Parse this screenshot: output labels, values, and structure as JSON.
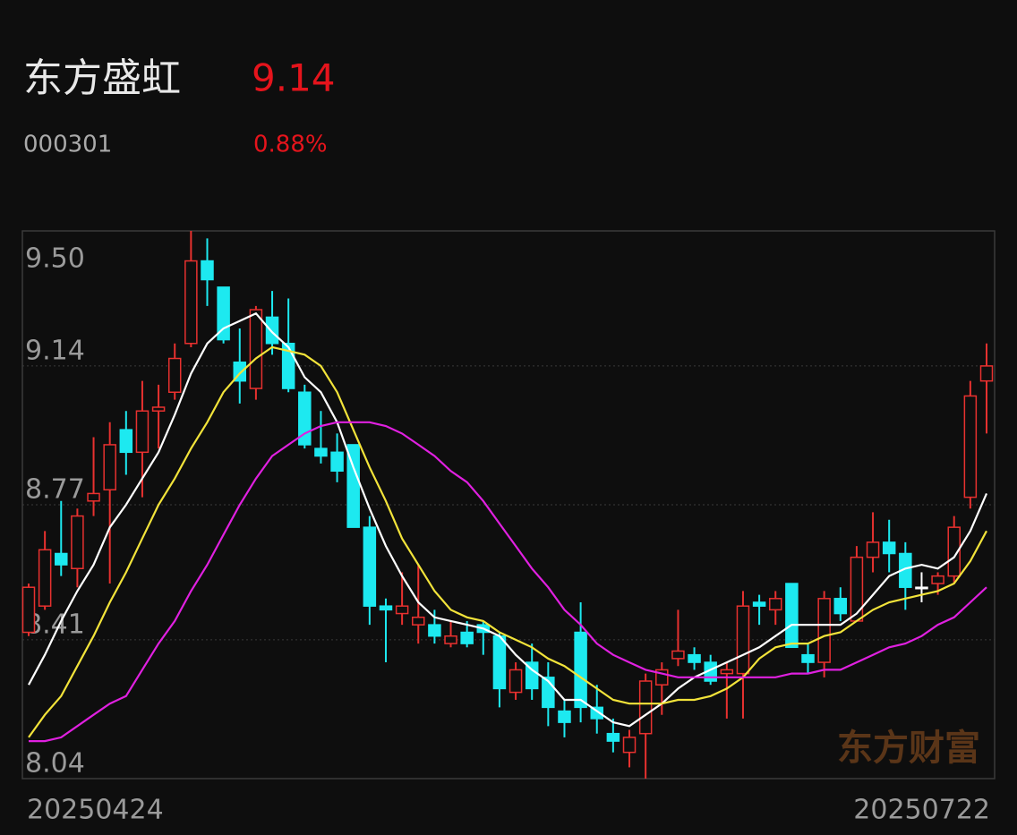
{
  "header": {
    "name": "东方盛虹",
    "price": "9.14",
    "code": "000301",
    "change": "0.88%"
  },
  "watermark": "东方财富",
  "chart_data": {
    "type": "candlestick",
    "categories": [
      "20250424",
      null,
      null,
      null,
      null,
      null,
      null,
      null,
      null,
      null,
      null,
      null,
      null,
      null,
      null,
      null,
      null,
      null,
      null,
      null,
      null,
      null,
      null,
      null,
      null,
      null,
      null,
      null,
      null,
      null,
      null,
      null,
      null,
      null,
      null,
      null,
      null,
      null,
      null,
      null,
      null,
      null,
      null,
      null,
      null,
      null,
      null,
      null,
      null,
      null,
      null,
      null,
      null,
      null,
      null,
      null,
      null,
      null,
      null,
      "20250722"
    ],
    "open": [
      8.43,
      8.5,
      8.64,
      8.6,
      8.78,
      8.81,
      8.97,
      8.91,
      9.02,
      9.07,
      9.2,
      9.42,
      9.35,
      9.15,
      9.08,
      9.27,
      9.2,
      9.07,
      8.92,
      8.91,
      8.93,
      8.71,
      8.5,
      8.48,
      8.45,
      8.45,
      8.4,
      8.43,
      8.45,
      8.42,
      8.27,
      8.35,
      8.31,
      8.22,
      8.43,
      8.23,
      8.16,
      8.11,
      8.16,
      8.29,
      8.36,
      8.37,
      8.35,
      8.32,
      8.32,
      8.51,
      8.49,
      8.56,
      8.37,
      8.35,
      8.52,
      8.46,
      8.63,
      8.67,
      8.64,
      8.55,
      8.56,
      8.58,
      8.79,
      9.1
    ],
    "high": [
      8.56,
      8.7,
      8.78,
      8.76,
      8.95,
      8.99,
      9.02,
      9.1,
      9.09,
      9.2,
      9.5,
      9.48,
      9.35,
      9.24,
      9.3,
      9.34,
      9.32,
      9.09,
      9.02,
      8.96,
      8.93,
      8.74,
      8.52,
      8.59,
      8.61,
      8.49,
      8.46,
      8.46,
      8.46,
      8.43,
      8.35,
      8.4,
      8.35,
      8.25,
      8.51,
      8.29,
      8.2,
      8.17,
      8.32,
      8.35,
      8.49,
      8.39,
      8.37,
      8.35,
      8.54,
      8.53,
      8.54,
      8.56,
      8.4,
      8.54,
      8.55,
      8.66,
      8.75,
      8.73,
      8.67,
      8.59,
      8.59,
      8.74,
      9.1,
      9.2
    ],
    "low": [
      8.42,
      8.49,
      8.58,
      8.55,
      8.74,
      8.56,
      8.85,
      8.79,
      8.92,
      9.05,
      9.19,
      9.3,
      9.2,
      9.04,
      9.05,
      9.17,
      9.07,
      8.92,
      8.88,
      8.83,
      8.71,
      8.45,
      8.35,
      8.45,
      8.4,
      8.4,
      8.39,
      8.39,
      8.37,
      8.23,
      8.25,
      8.25,
      8.18,
      8.15,
      8.19,
      8.16,
      8.11,
      8.07,
      8.04,
      8.21,
      8.34,
      8.33,
      8.29,
      8.2,
      8.2,
      8.45,
      8.45,
      8.39,
      8.32,
      8.31,
      8.46,
      8.46,
      8.59,
      8.59,
      8.49,
      8.51,
      8.53,
      8.56,
      8.76,
      8.96
    ],
    "close": [
      8.55,
      8.65,
      8.61,
      8.74,
      8.8,
      8.93,
      8.91,
      9.02,
      9.03,
      9.16,
      9.42,
      9.37,
      9.21,
      9.1,
      9.29,
      9.2,
      9.08,
      8.93,
      8.9,
      8.86,
      8.71,
      8.5,
      8.49,
      8.5,
      8.47,
      8.42,
      8.42,
      8.4,
      8.43,
      8.28,
      8.33,
      8.28,
      8.23,
      8.19,
      8.23,
      8.2,
      8.14,
      8.15,
      8.3,
      8.33,
      8.38,
      8.35,
      8.3,
      8.33,
      8.5,
      8.5,
      8.52,
      8.39,
      8.35,
      8.52,
      8.48,
      8.63,
      8.67,
      8.64,
      8.55,
      8.55,
      8.58,
      8.71,
      9.06,
      9.14
    ],
    "colors": {
      "up": "#e8312f",
      "down": "#1de9f0",
      "flat": "#ffffff"
    },
    "series": [
      {
        "color": "#ffffff",
        "values": [
          8.29,
          8.37,
          8.46,
          8.54,
          8.61,
          8.71,
          8.77,
          8.84,
          8.91,
          9.01,
          9.12,
          9.2,
          9.24,
          9.26,
          9.28,
          9.23,
          9.19,
          9.11,
          9.07,
          8.99,
          8.87,
          8.76,
          8.66,
          8.58,
          8.51,
          8.47,
          8.46,
          8.45,
          8.44,
          8.42,
          8.37,
          8.33,
          8.3,
          8.25,
          8.25,
          8.22,
          8.19,
          8.18,
          8.21,
          8.24,
          8.28,
          8.31,
          8.33,
          8.35,
          8.37,
          8.39,
          8.42,
          8.45,
          8.45,
          8.45,
          8.45,
          8.48,
          8.53,
          8.58,
          8.6,
          8.61,
          8.6,
          8.63,
          8.7,
          8.8
        ]
      },
      {
        "color": "#f2e33a",
        "values": [
          8.15,
          8.21,
          8.26,
          8.34,
          8.42,
          8.51,
          8.59,
          8.68,
          8.77,
          8.84,
          8.92,
          8.99,
          9.07,
          9.12,
          9.16,
          9.19,
          9.18,
          9.17,
          9.14,
          9.07,
          8.97,
          8.87,
          8.78,
          8.68,
          8.61,
          8.54,
          8.49,
          8.47,
          8.46,
          8.43,
          8.41,
          8.39,
          8.36,
          8.34,
          8.31,
          8.28,
          8.25,
          8.24,
          8.24,
          8.24,
          8.25,
          8.25,
          8.26,
          8.28,
          8.31,
          8.36,
          8.39,
          8.4,
          8.4,
          8.42,
          8.43,
          8.46,
          8.49,
          8.51,
          8.52,
          8.53,
          8.54,
          8.56,
          8.62,
          8.7
        ]
      },
      {
        "color": "#e020e0",
        "values": [
          8.14,
          8.14,
          8.15,
          8.18,
          8.21,
          8.24,
          8.26,
          8.33,
          8.4,
          8.46,
          8.54,
          8.61,
          8.69,
          8.77,
          8.84,
          8.9,
          8.93,
          8.96,
          8.98,
          8.99,
          8.99,
          8.99,
          8.98,
          8.96,
          8.93,
          8.9,
          8.86,
          8.83,
          8.78,
          8.72,
          8.66,
          8.6,
          8.55,
          8.49,
          8.45,
          8.4,
          8.37,
          8.35,
          8.33,
          8.32,
          8.31,
          8.31,
          8.31,
          8.31,
          8.31,
          8.31,
          8.31,
          8.32,
          8.32,
          8.33,
          8.33,
          8.35,
          8.37,
          8.39,
          8.4,
          8.42,
          8.45,
          8.47,
          8.51,
          8.55
        ]
      }
    ],
    "ylim": [
      8.04,
      9.5
    ],
    "yticks": [
      {
        "value": 9.5,
        "label": "9.50"
      },
      9.14,
      8.77,
      8.41,
      8.04
    ],
    "grid": true
  }
}
